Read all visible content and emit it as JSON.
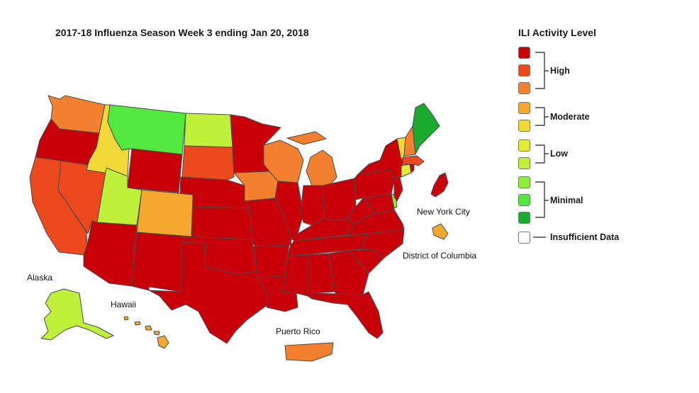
{
  "title": "2017-18 Influenza Season Week 3 ending Jan 20, 2018",
  "colors": {
    "level10": "#c8000a",
    "level9": "#ec4a1e",
    "level8": "#f3802e",
    "level7": "#f5a72e",
    "level6": "#f2d838",
    "level5": "#e3ec35",
    "level4": "#bff03a",
    "level3": "#8ef03c",
    "level2": "#52e83e",
    "level1": "#1aaa2e",
    "insufficient": "#ffffff"
  },
  "region_labels": {
    "alaska": "Alaska",
    "hawaii": "Hawaii",
    "puerto_rico": "Puerto Rico",
    "nyc": "New York City",
    "dc": "District of Columbia"
  },
  "legend": {
    "title": "ILI Activity Level",
    "groups": [
      {
        "label": "High",
        "levels": [
          "level10",
          "level9",
          "level8"
        ]
      },
      {
        "label": "Moderate",
        "levels": [
          "level7",
          "level6"
        ]
      },
      {
        "label": "Low",
        "levels": [
          "level5",
          "level4"
        ]
      },
      {
        "label": "Minimal",
        "levels": [
          "level3",
          "level2",
          "level1"
        ]
      }
    ],
    "insufficient_label": "Insufficient Data"
  },
  "state_levels": {
    "WA": "level8",
    "OR": "level10",
    "CA": "level9",
    "NV": "level9",
    "ID": "level6",
    "MT": "level2",
    "WY": "level10",
    "UT": "level4",
    "CO": "level7",
    "AZ": "level10",
    "NM": "level10",
    "ND": "level4",
    "SD": "level9",
    "NE": "level10",
    "KS": "level10",
    "OK": "level10",
    "TX": "level10",
    "MN": "level10",
    "IA": "level8",
    "MO": "level10",
    "AR": "level10",
    "LA": "level10",
    "WI": "level8",
    "IL": "level10",
    "MI": "level8",
    "IN": "level10",
    "OH": "level10",
    "KY": "level10",
    "TN": "level10",
    "MS": "level10",
    "AL": "level10",
    "GA": "level10",
    "FL": "level10",
    "SC": "level10",
    "NC": "level10",
    "VA": "level10",
    "WV": "level10",
    "PA": "level10",
    "NY": "level10",
    "NJ": "level10",
    "DE": "level3",
    "MD": "level10",
    "CT": "level5",
    "RI": "level10",
    "MA": "level9",
    "VT": "level6",
    "NH": "level8",
    "ME": "level1",
    "AK": "level4",
    "HI": "level7",
    "PR": "level8",
    "NYC": "level10",
    "DC": "level7"
  }
}
